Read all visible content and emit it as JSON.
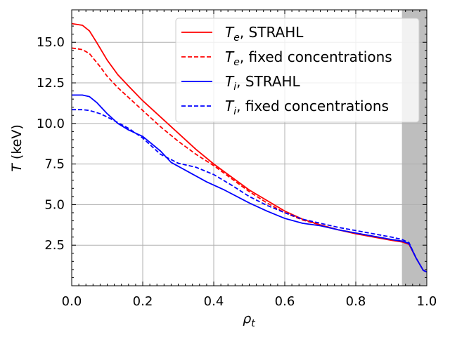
{
  "chart_data": {
    "type": "line",
    "title": "",
    "xlabel": "ρ",
    "xlabel_sub": "t",
    "ylabel_var": "T",
    "ylabel_unit": "(keV)",
    "xlim": [
      0.0,
      1.0
    ],
    "ylim": [
      0.0,
      17.0
    ],
    "grid": true,
    "legend_position": "top-right",
    "x_ticks": [
      0.0,
      0.2,
      0.4,
      0.6,
      0.8,
      1.0
    ],
    "x_tick_labels": [
      "0.0",
      "0.2",
      "0.4",
      "0.6",
      "0.8",
      "1.0"
    ],
    "y_ticks": [
      2.5,
      5.0,
      7.5,
      10.0,
      12.5,
      15.0
    ],
    "y_tick_labels": [
      "2.5",
      "5.0",
      "7.5",
      "10.0",
      "12.5",
      "15.0"
    ],
    "shaded_region": {
      "x_start": 0.93,
      "x_end": 1.0,
      "color": "#bebebe"
    },
    "series": [
      {
        "name": "T_e, STRAHL",
        "legend_var": "T",
        "legend_sub": "e",
        "legend_suffix": ", STRAHL",
        "color": "#ff0000",
        "dash": "solid",
        "x": [
          0.0,
          0.03,
          0.05,
          0.07,
          0.1,
          0.13,
          0.16,
          0.2,
          0.25,
          0.3,
          0.35,
          0.4,
          0.45,
          0.5,
          0.55,
          0.6,
          0.65,
          0.7,
          0.75,
          0.8,
          0.85,
          0.9,
          0.93,
          0.95,
          0.97,
          0.99,
          1.0
        ],
        "y": [
          16.15,
          16.05,
          15.7,
          15.0,
          13.9,
          13.0,
          12.3,
          11.4,
          10.4,
          9.4,
          8.4,
          7.5,
          6.7,
          5.9,
          5.25,
          4.6,
          4.1,
          3.75,
          3.45,
          3.2,
          3.0,
          2.8,
          2.7,
          2.55,
          1.7,
          0.95,
          0.85
        ]
      },
      {
        "name": "T_e, fixed concentrations",
        "legend_var": "T",
        "legend_sub": "e",
        "legend_suffix": ", fixed concentrations",
        "color": "#ff0000",
        "dash": "dashed",
        "x": [
          0.0,
          0.03,
          0.05,
          0.08,
          0.1,
          0.13,
          0.16,
          0.2,
          0.25,
          0.3,
          0.35,
          0.4,
          0.45,
          0.5,
          0.55,
          0.6,
          0.65,
          0.7,
          0.75,
          0.8,
          0.85,
          0.9,
          0.93,
          0.95,
          0.97,
          0.99,
          1.0
        ],
        "y": [
          14.65,
          14.55,
          14.3,
          13.5,
          12.9,
          12.2,
          11.6,
          10.8,
          9.8,
          8.9,
          8.1,
          7.4,
          6.6,
          5.8,
          5.1,
          4.5,
          4.05,
          3.75,
          3.45,
          3.25,
          3.05,
          2.85,
          2.75,
          2.6,
          1.7,
          0.95,
          0.85
        ]
      },
      {
        "name": "T_i, STRAHL",
        "legend_var": "T",
        "legend_sub": "i",
        "legend_suffix": ", STRAHL",
        "color": "#0000ff",
        "dash": "solid",
        "x": [
          0.0,
          0.03,
          0.05,
          0.07,
          0.1,
          0.13,
          0.16,
          0.2,
          0.25,
          0.28,
          0.33,
          0.38,
          0.43,
          0.5,
          0.55,
          0.6,
          0.65,
          0.7,
          0.75,
          0.8,
          0.85,
          0.9,
          0.93,
          0.95,
          0.97,
          0.99,
          1.0
        ],
        "y": [
          11.75,
          11.75,
          11.65,
          11.3,
          10.6,
          10.0,
          9.6,
          9.2,
          8.3,
          7.6,
          7.0,
          6.4,
          5.9,
          5.1,
          4.6,
          4.15,
          3.85,
          3.7,
          3.45,
          3.25,
          3.05,
          2.85,
          2.75,
          2.6,
          1.7,
          0.95,
          0.85
        ]
      },
      {
        "name": "T_i, fixed concentrations",
        "legend_var": "T",
        "legend_sub": "i",
        "legend_suffix": ", fixed concentrations",
        "color": "#0000ff",
        "dash": "dashed",
        "x": [
          0.0,
          0.03,
          0.05,
          0.08,
          0.1,
          0.13,
          0.16,
          0.2,
          0.25,
          0.3,
          0.35,
          0.4,
          0.45,
          0.5,
          0.55,
          0.6,
          0.65,
          0.7,
          0.75,
          0.8,
          0.85,
          0.9,
          0.93,
          0.95,
          0.97,
          0.99,
          1.0
        ],
        "y": [
          10.85,
          10.85,
          10.8,
          10.6,
          10.4,
          10.05,
          9.7,
          9.1,
          8.1,
          7.55,
          7.3,
          6.85,
          6.2,
          5.5,
          4.95,
          4.5,
          4.1,
          3.85,
          3.6,
          3.4,
          3.2,
          3.0,
          2.85,
          2.65,
          1.7,
          0.95,
          0.85
        ]
      }
    ]
  }
}
